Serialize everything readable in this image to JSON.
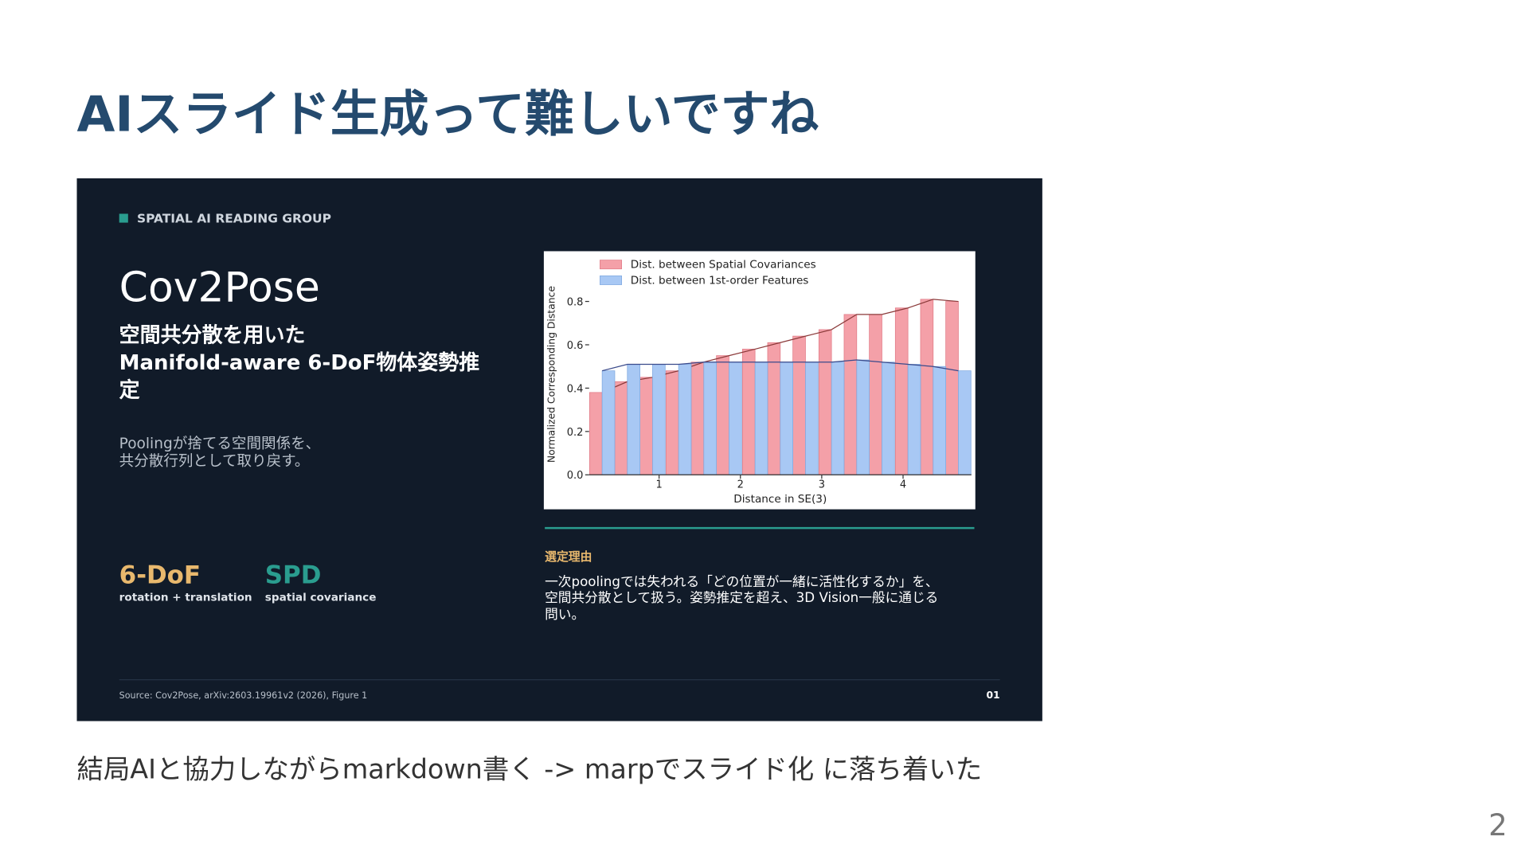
{
  "title": "AIスライド生成って難しいですね",
  "slide": {
    "tag": "SPATIAL AI READING GROUP",
    "heading": "Cov2Pose",
    "subtitle_lines": [
      "空間共分散を用いた",
      "Manifold-aware 6-DoF物体姿勢推",
      "定"
    ],
    "description_lines": [
      "Poolingが捨てる空間関係を、",
      "共分散行列として取り戻す。"
    ],
    "stats": [
      {
        "value": "6-DoF",
        "caption": "rotation + translation"
      },
      {
        "value": "SPD",
        "caption": "spatial covariance"
      }
    ],
    "figure": {
      "type": "bar",
      "x": [
        0.3,
        0.61,
        0.92,
        1.24,
        1.55,
        1.86,
        2.18,
        2.49,
        2.8,
        3.12,
        3.43,
        3.74,
        4.06,
        4.37,
        4.68
      ],
      "xlim": [
        0.14,
        4.84
      ],
      "xticks": [
        1,
        2,
        3,
        4
      ],
      "ylim": [
        0,
        1
      ],
      "yticks": [
        {
          "value": 0,
          "label": "0.0"
        },
        0.2,
        0.4,
        0.6,
        0.8
      ],
      "xlabel": "Distance in SE(3)",
      "ylabel": "Normalized Corresponding Distance",
      "series": [
        {
          "name": "Dist. between Spatial Covariances",
          "color": "#f4a0a8",
          "values": [
            0.38,
            0.43,
            0.45,
            0.48,
            0.52,
            0.55,
            0.58,
            0.61,
            0.64,
            0.67,
            0.74,
            0.74,
            0.77,
            0.81,
            0.8
          ]
        },
        {
          "name": "Dist. between 1st-order Features",
          "color": "#a8c8f4",
          "values": [
            0.48,
            0.51,
            0.51,
            0.51,
            0.52,
            0.52,
            0.52,
            0.52,
            0.52,
            0.52,
            0.53,
            0.52,
            0.51,
            0.5,
            0.48
          ]
        }
      ]
    },
    "reason_heading": "選定理由",
    "reason_lines": [
      "一次poolingでは失われる「どの位置が一緒に活性化するか」を、",
      "空間共分散として扱う。姿勢推定を超え、3D Vision一般に通じる",
      "問い。"
    ],
    "source": "Source: Cov2Pose, arXiv:2603.19961v2 (2026), Figure 1",
    "slide_number": "01"
  },
  "caption": "結局AIと協力しながらmarkdown書く -> marpでスライド化 に落ち着いた",
  "page_number": "2"
}
